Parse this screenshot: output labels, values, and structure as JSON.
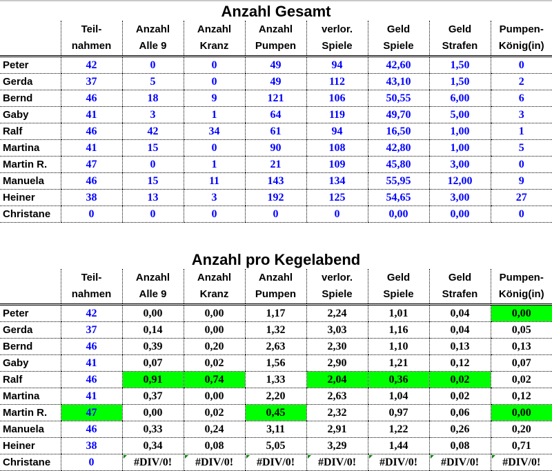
{
  "colors": {
    "value_blue": "#0000ff",
    "highlight_green": "#00ff00"
  },
  "headers": [
    [
      "Teil-",
      "nahmen"
    ],
    [
      "Anzahl",
      "Alle 9"
    ],
    [
      "Anzahl",
      "Kranz"
    ],
    [
      "Anzahl",
      "Pumpen"
    ],
    [
      "verlor.",
      "Spiele"
    ],
    [
      "Geld",
      "Spiele"
    ],
    [
      "Geld",
      "Strafen"
    ],
    [
      "Pumpen-",
      "König(in)"
    ]
  ],
  "section1": {
    "title": "Anzahl Gesamt",
    "rows": [
      {
        "name": "Peter",
        "values": [
          "42",
          "0",
          "0",
          "49",
          "94",
          "42,60",
          "1,50",
          "0"
        ]
      },
      {
        "name": "Gerda",
        "values": [
          "37",
          "5",
          "0",
          "49",
          "112",
          "43,10",
          "1,50",
          "2"
        ]
      },
      {
        "name": "Bernd",
        "values": [
          "46",
          "18",
          "9",
          "121",
          "106",
          "50,55",
          "6,00",
          "6"
        ]
      },
      {
        "name": "Gaby",
        "values": [
          "41",
          "3",
          "1",
          "64",
          "119",
          "49,70",
          "5,00",
          "3"
        ]
      },
      {
        "name": "Ralf",
        "values": [
          "46",
          "42",
          "34",
          "61",
          "94",
          "16,50",
          "1,00",
          "1"
        ]
      },
      {
        "name": "Martina",
        "values": [
          "41",
          "15",
          "0",
          "90",
          "108",
          "42,80",
          "1,00",
          "5"
        ]
      },
      {
        "name": "Martin R.",
        "values": [
          "47",
          "0",
          "1",
          "21",
          "109",
          "45,80",
          "3,00",
          "0"
        ]
      },
      {
        "name": "Manuela",
        "values": [
          "46",
          "15",
          "11",
          "143",
          "134",
          "55,95",
          "12,00",
          "9"
        ]
      },
      {
        "name": "Heiner",
        "values": [
          "38",
          "13",
          "3",
          "192",
          "125",
          "54,65",
          "3,00",
          "27"
        ]
      },
      {
        "name": "Christane",
        "values": [
          "0",
          "0",
          "0",
          "0",
          "0",
          "0,00",
          "0,00",
          "0"
        ]
      }
    ]
  },
  "section2": {
    "title": "Anzahl pro Kegelabend",
    "rows": [
      {
        "name": "Peter",
        "values": [
          "42",
          "0,00",
          "0,00",
          "1,17",
          "2,24",
          "1,01",
          "0,04",
          "0,00"
        ],
        "highlight": [
          8
        ]
      },
      {
        "name": "Gerda",
        "values": [
          "37",
          "0,14",
          "0,00",
          "1,32",
          "3,03",
          "1,16",
          "0,04",
          "0,05"
        ],
        "highlight": []
      },
      {
        "name": "Bernd",
        "values": [
          "46",
          "0,39",
          "0,20",
          "2,63",
          "2,30",
          "1,10",
          "0,13",
          "0,13"
        ],
        "highlight": []
      },
      {
        "name": "Gaby",
        "values": [
          "41",
          "0,07",
          "0,02",
          "1,56",
          "2,90",
          "1,21",
          "0,12",
          "0,07"
        ],
        "highlight": []
      },
      {
        "name": "Ralf",
        "values": [
          "46",
          "0,91",
          "0,74",
          "1,33",
          "2,04",
          "0,36",
          "0,02",
          "0,02"
        ],
        "highlight": [
          2,
          3,
          5,
          6,
          7
        ]
      },
      {
        "name": "Martina",
        "values": [
          "41",
          "0,37",
          "0,00",
          "2,20",
          "2,63",
          "1,04",
          "0,02",
          "0,12"
        ],
        "highlight": []
      },
      {
        "name": "Martin R.",
        "values": [
          "47",
          "0,00",
          "0,02",
          "0,45",
          "2,32",
          "0,97",
          "0,06",
          "0,00"
        ],
        "highlight": [
          1,
          4,
          8
        ]
      },
      {
        "name": "Manuela",
        "values": [
          "46",
          "0,33",
          "0,24",
          "3,11",
          "2,91",
          "1,22",
          "0,26",
          "0,20"
        ],
        "highlight": []
      },
      {
        "name": "Heiner",
        "values": [
          "38",
          "0,34",
          "0,08",
          "5,05",
          "3,29",
          "1,44",
          "0,08",
          "0,71"
        ],
        "highlight": []
      },
      {
        "name": "Christane",
        "values": [
          "0",
          "#DIV/0!",
          "#DIV/0!",
          "#DIV/0!",
          "#DIV/0!",
          "#DIV/0!",
          "#DIV/0!",
          "#DIV/0!"
        ],
        "highlight": []
      }
    ]
  }
}
